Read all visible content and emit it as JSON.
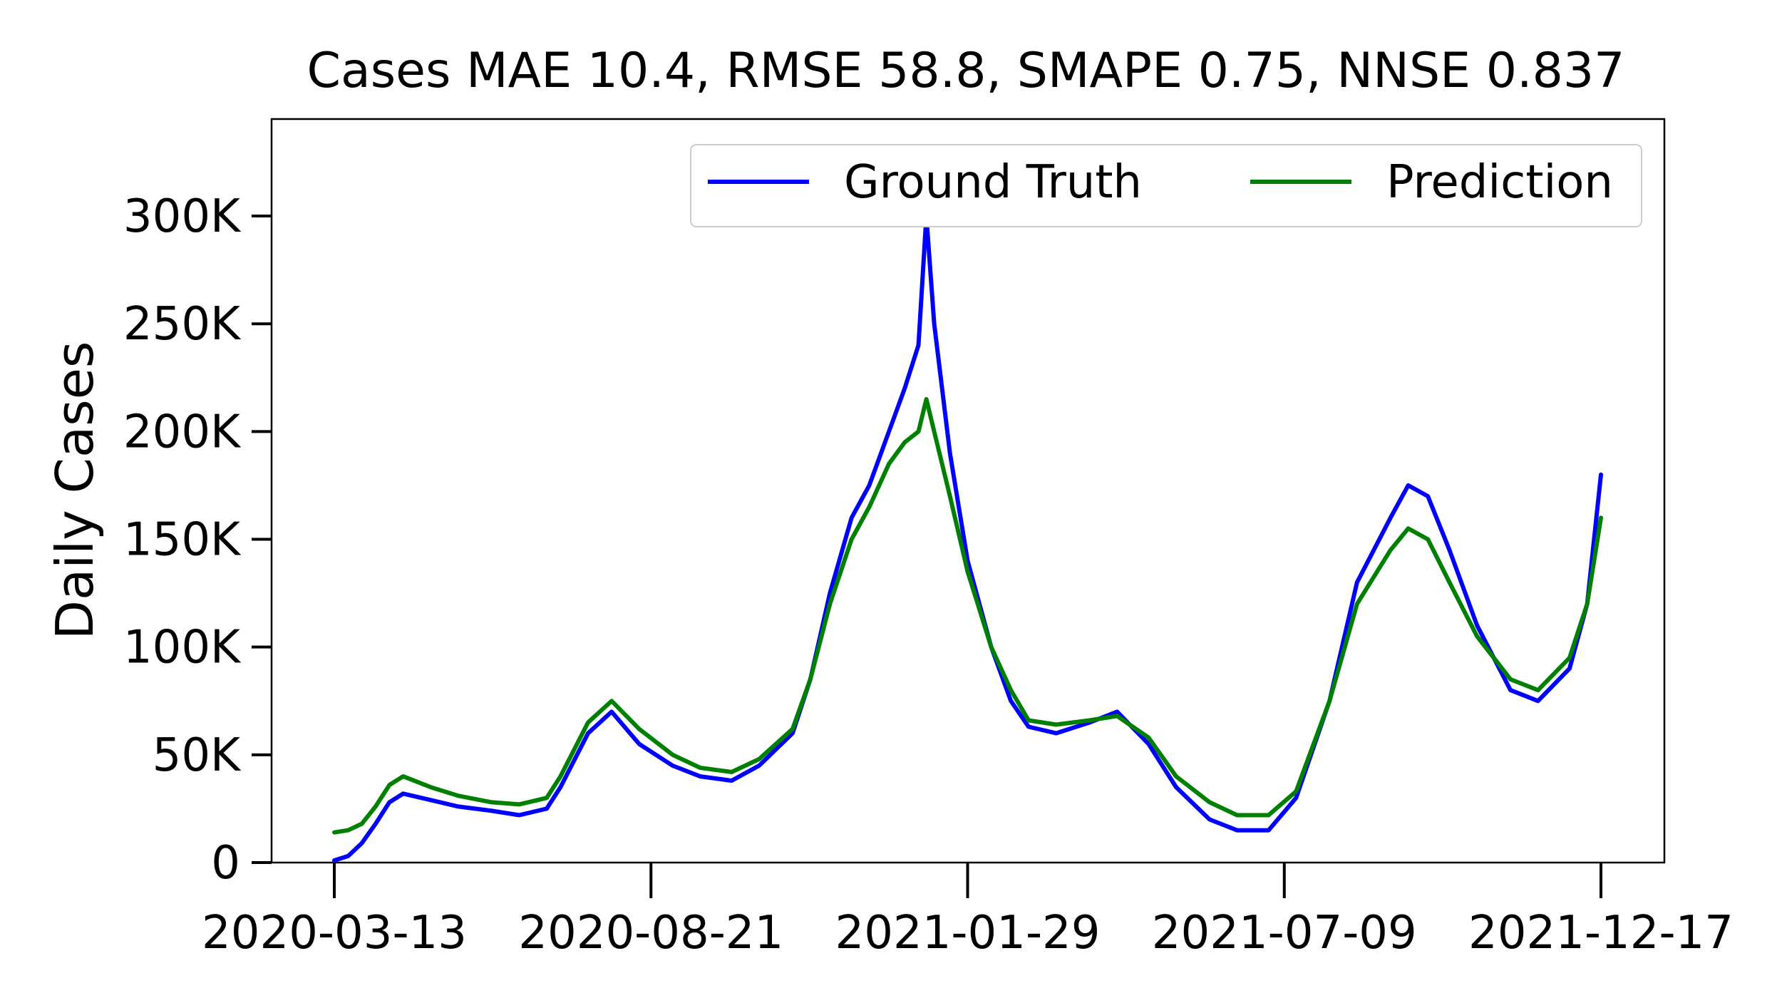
{
  "chart_data": {
    "type": "line",
    "title": "Cases MAE 10.4, RMSE 58.8, SMAPE 0.75, NNSE 0.837",
    "xlabel": "",
    "ylabel": "Daily Cases",
    "x_tick_labels": [
      "2020-03-13",
      "2020-08-21",
      "2021-01-29",
      "2021-07-09",
      "2021-12-17"
    ],
    "y_tick_labels": [
      "0",
      "50K",
      "100K",
      "150K",
      "200K",
      "250K",
      "300K"
    ],
    "y_ticks": [
      0,
      50000,
      100000,
      150000,
      200000,
      250000,
      300000
    ],
    "x_range": [
      "2020-03-13",
      "2021-12-17"
    ],
    "ylim": [
      0,
      345000
    ],
    "grid": false,
    "legend_position": "top-right",
    "colors": {
      "Ground Truth": "#0000ff",
      "Prediction": "#008000"
    },
    "series": [
      {
        "name": "Ground Truth",
        "dates": [
          "2020-03-13",
          "2020-03-20",
          "2020-03-27",
          "2020-04-03",
          "2020-04-10",
          "2020-04-17",
          "2020-05-01",
          "2020-05-15",
          "2020-06-01",
          "2020-06-15",
          "2020-06-29",
          "2020-07-06",
          "2020-07-20",
          "2020-08-01",
          "2020-08-15",
          "2020-09-01",
          "2020-09-15",
          "2020-10-01",
          "2020-10-15",
          "2020-11-01",
          "2020-11-10",
          "2020-11-20",
          "2020-12-01",
          "2020-12-10",
          "2020-12-20",
          "2020-12-28",
          "2021-01-04",
          "2021-01-08",
          "2021-01-12",
          "2021-01-20",
          "2021-01-29",
          "2021-02-10",
          "2021-02-20",
          "2021-03-01",
          "2021-03-15",
          "2021-04-01",
          "2021-04-15",
          "2021-05-01",
          "2021-05-15",
          "2021-06-01",
          "2021-06-15",
          "2021-07-01",
          "2021-07-15",
          "2021-08-01",
          "2021-08-15",
          "2021-09-01",
          "2021-09-10",
          "2021-09-20",
          "2021-10-01",
          "2021-10-15",
          "2021-11-01",
          "2021-11-15",
          "2021-12-01",
          "2021-12-10",
          "2021-12-17"
        ],
        "values": [
          1000,
          3000,
          9000,
          18000,
          28000,
          32000,
          29000,
          26000,
          24000,
          22000,
          25000,
          35000,
          60000,
          70000,
          55000,
          45000,
          40000,
          38000,
          45000,
          60000,
          85000,
          125000,
          160000,
          175000,
          200000,
          220000,
          240000,
          300000,
          250000,
          190000,
          140000,
          100000,
          75000,
          63000,
          60000,
          65000,
          70000,
          55000,
          35000,
          20000,
          15000,
          15000,
          30000,
          75000,
          130000,
          160000,
          175000,
          170000,
          145000,
          110000,
          80000,
          75000,
          90000,
          120000,
          180000
        ]
      },
      {
        "name": "Prediction",
        "dates": [
          "2020-03-13",
          "2020-03-20",
          "2020-03-27",
          "2020-04-03",
          "2020-04-10",
          "2020-04-17",
          "2020-05-01",
          "2020-05-15",
          "2020-06-01",
          "2020-06-15",
          "2020-06-29",
          "2020-07-06",
          "2020-07-20",
          "2020-08-01",
          "2020-08-15",
          "2020-09-01",
          "2020-09-15",
          "2020-10-01",
          "2020-10-15",
          "2020-11-01",
          "2020-11-10",
          "2020-11-20",
          "2020-12-01",
          "2020-12-10",
          "2020-12-20",
          "2020-12-28",
          "2021-01-04",
          "2021-01-08",
          "2021-01-12",
          "2021-01-20",
          "2021-01-29",
          "2021-02-10",
          "2021-02-20",
          "2021-03-01",
          "2021-03-15",
          "2021-04-01",
          "2021-04-15",
          "2021-05-01",
          "2021-05-15",
          "2021-06-01",
          "2021-06-15",
          "2021-07-01",
          "2021-07-15",
          "2021-08-01",
          "2021-08-15",
          "2021-09-01",
          "2021-09-10",
          "2021-09-20",
          "2021-10-01",
          "2021-10-15",
          "2021-11-01",
          "2021-11-15",
          "2021-12-01",
          "2021-12-10",
          "2021-12-17"
        ],
        "values": [
          14000,
          15000,
          18000,
          26000,
          36000,
          40000,
          35000,
          31000,
          28000,
          27000,
          30000,
          40000,
          65000,
          75000,
          62000,
          50000,
          44000,
          42000,
          48000,
          62000,
          85000,
          120000,
          150000,
          165000,
          185000,
          195000,
          200000,
          215000,
          200000,
          170000,
          135000,
          100000,
          80000,
          66000,
          64000,
          66000,
          68000,
          58000,
          40000,
          28000,
          22000,
          22000,
          33000,
          75000,
          120000,
          145000,
          155000,
          150000,
          130000,
          105000,
          85000,
          80000,
          95000,
          120000,
          160000
        ]
      }
    ]
  }
}
